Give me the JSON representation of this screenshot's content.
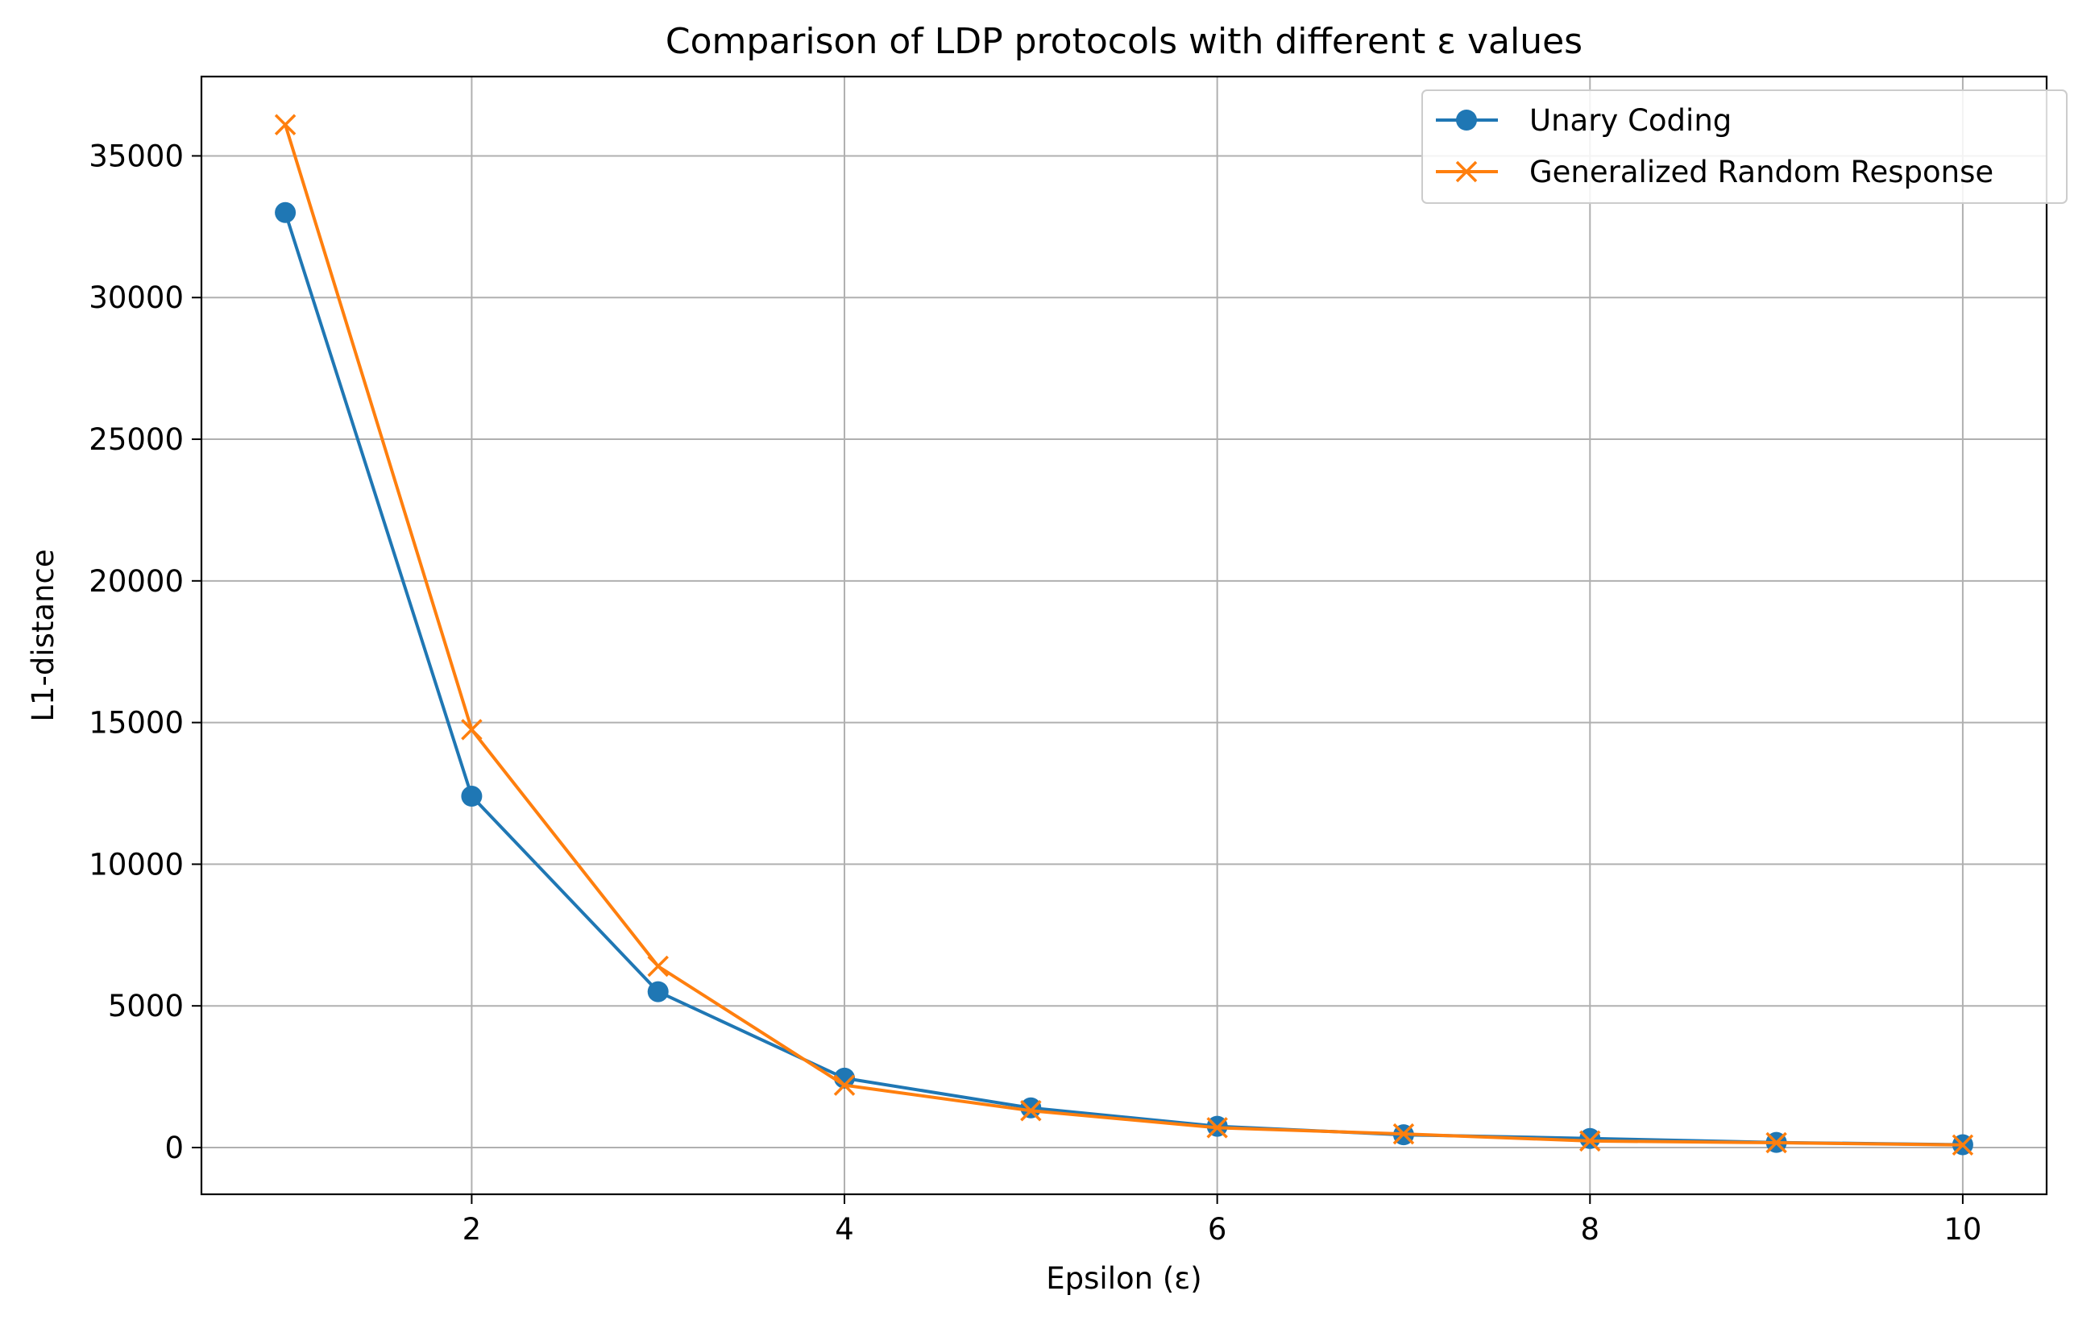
{
  "chart_data": {
    "type": "line",
    "title": "Comparison of LDP protocols with different ε values",
    "xlabel": "Epsilon (ε)",
    "ylabel": "L1-distance",
    "xlim": [
      0.55,
      10.45
    ],
    "ylim": [
      -1650,
      37800
    ],
    "xticks": [
      2,
      4,
      6,
      8,
      10
    ],
    "yticks": [
      0,
      5000,
      10000,
      15000,
      20000,
      25000,
      30000,
      35000
    ],
    "grid": true,
    "legend": "top-right",
    "x": [
      1,
      2,
      3,
      4,
      5,
      6,
      7,
      8,
      9,
      10
    ],
    "series": [
      {
        "name": "Unary Coding",
        "color": "#1f77b4",
        "marker": "circle",
        "values": [
          33000,
          12400,
          5500,
          2450,
          1400,
          750,
          450,
          320,
          180,
          100
        ]
      },
      {
        "name": "Generalized Random Response",
        "color": "#ff7f0e",
        "marker": "x",
        "values": [
          36100,
          14750,
          6400,
          2200,
          1300,
          700,
          480,
          230,
          170,
          90
        ]
      }
    ]
  }
}
